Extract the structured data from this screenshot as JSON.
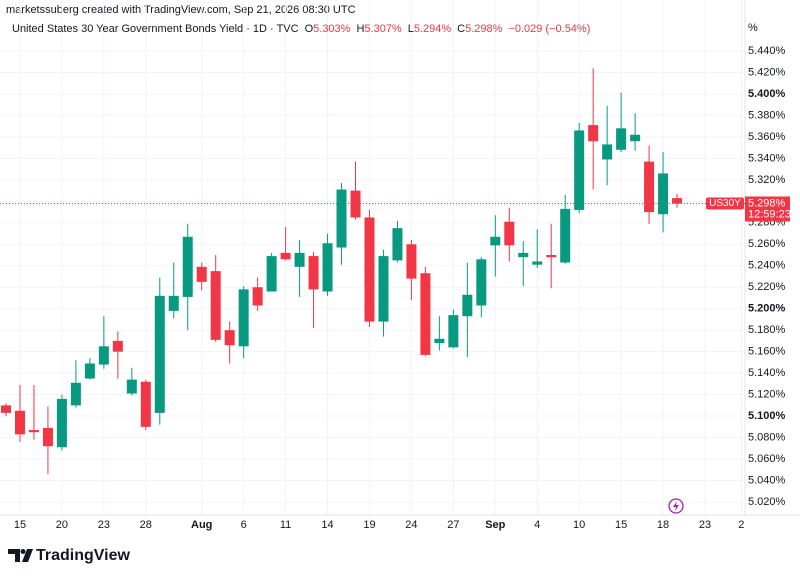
{
  "header": {
    "caption": "marketssuberg created with TradingView.com, Sep 21, 2026 08:30 UTC",
    "logo": "TradingView"
  },
  "chart_data": {
    "type": "candlestick",
    "title": "United States 30 Year Government Bonds Yield · 1D · TVC",
    "legend": [
      {
        "key": "O",
        "text": "5.303%"
      },
      {
        "key": "H",
        "text": "5.307%"
      },
      {
        "key": "L",
        "text": "5.294%"
      },
      {
        "key": "C",
        "text": "5.298%"
      }
    ],
    "change": "−0.029 (−0.54%)",
    "unit": "%",
    "up_color": "#089981",
    "down_color": "#f23645",
    "open": [
      5.11,
      5.105,
      5.087,
      5.089,
      5.071,
      5.11,
      5.135,
      5.148,
      5.17,
      5.121,
      5.132,
      5.103,
      5.198,
      5.211,
      5.239,
      5.235,
      5.18,
      5.165,
      5.22,
      5.216,
      5.252,
      5.239,
      5.249,
      5.216,
      5.257,
      5.31,
      5.285,
      5.188,
      5.245,
      5.26,
      5.233,
      5.168,
      5.164,
      5.193,
      5.203,
      5.259,
      5.281,
      5.248,
      5.241,
      5.25,
      5.243,
      5.292,
      5.371,
      5.339,
      5.348,
      5.356,
      5.337,
      5.288,
      5.303
    ],
    "high": [
      5.112,
      5.129,
      5.129,
      5.109,
      5.12,
      5.152,
      5.154,
      5.193,
      5.179,
      5.145,
      5.134,
      5.229,
      5.243,
      5.279,
      5.243,
      5.25,
      5.188,
      5.221,
      5.229,
      5.252,
      5.276,
      5.264,
      5.253,
      5.27,
      5.317,
      5.337,
      5.292,
      5.255,
      5.282,
      5.264,
      5.239,
      5.193,
      5.199,
      5.243,
      5.248,
      5.287,
      5.294,
      5.263,
      5.274,
      5.279,
      5.306,
      5.373,
      5.424,
      5.389,
      5.401,
      5.382,
      5.352,
      5.346,
      5.307
    ],
    "low": [
      5.1,
      5.076,
      5.078,
      5.046,
      5.068,
      5.108,
      5.134,
      5.144,
      5.135,
      5.119,
      5.087,
      5.092,
      5.191,
      5.18,
      5.217,
      5.169,
      5.149,
      5.154,
      5.198,
      5.216,
      5.245,
      5.211,
      5.182,
      5.212,
      5.241,
      5.283,
      5.183,
      5.174,
      5.243,
      5.208,
      5.156,
      5.161,
      5.163,
      5.155,
      5.192,
      5.23,
      5.244,
      5.221,
      5.238,
      5.219,
      5.242,
      5.289,
      5.311,
      5.315,
      5.346,
      5.347,
      5.279,
      5.271,
      5.294
    ],
    "close": [
      5.103,
      5.083,
      5.085,
      5.072,
      5.116,
      5.131,
      5.149,
      5.165,
      5.16,
      5.134,
      5.09,
      5.212,
      5.212,
      5.267,
      5.225,
      5.171,
      5.166,
      5.218,
      5.203,
      5.249,
      5.246,
      5.252,
      5.218,
      5.261,
      5.311,
      5.285,
      5.188,
      5.249,
      5.275,
      5.228,
      5.157,
      5.172,
      5.194,
      5.213,
      5.246,
      5.267,
      5.259,
      5.252,
      5.244,
      5.248,
      5.293,
      5.366,
      5.356,
      5.353,
      5.368,
      5.362,
      5.29,
      5.326,
      5.298
    ],
    "ylim": [
      5.0,
      5.46
    ],
    "yticks": [
      {
        "value": 5.02,
        "label": "5.020%"
      },
      {
        "value": 5.04,
        "label": "5.040%"
      },
      {
        "value": 5.06,
        "label": "5.060%"
      },
      {
        "value": 5.08,
        "label": "5.080%"
      },
      {
        "value": 5.1,
        "label": "5.100%",
        "bold": true
      },
      {
        "value": 5.12,
        "label": "5.120%"
      },
      {
        "value": 5.14,
        "label": "5.140%"
      },
      {
        "value": 5.16,
        "label": "5.160%"
      },
      {
        "value": 5.18,
        "label": "5.180%"
      },
      {
        "value": 5.2,
        "label": "5.200%",
        "bold": true
      },
      {
        "value": 5.22,
        "label": "5.220%"
      },
      {
        "value": 5.24,
        "label": "5.240%"
      },
      {
        "value": 5.26,
        "label": "5.260%"
      },
      {
        "value": 5.28,
        "label": "5.280%"
      },
      {
        "value": 5.3,
        "label": "5.300%"
      },
      {
        "value": 5.32,
        "label": "5.320%"
      },
      {
        "value": 5.34,
        "label": "5.340%"
      },
      {
        "value": 5.36,
        "label": "5.360%"
      },
      {
        "value": 5.38,
        "label": "5.380%"
      },
      {
        "value": 5.4,
        "label": "5.400%",
        "bold": true
      },
      {
        "value": 5.42,
        "label": "5.420%"
      },
      {
        "value": 5.44,
        "label": "5.440%"
      }
    ],
    "xticks": [
      {
        "index": 1,
        "label": "15"
      },
      {
        "index": 4,
        "label": "20"
      },
      {
        "index": 7,
        "label": "23"
      },
      {
        "index": 10,
        "label": "28"
      },
      {
        "index": 14,
        "label": "Aug",
        "bold": true
      },
      {
        "index": 17,
        "label": "6"
      },
      {
        "index": 20,
        "label": "11"
      },
      {
        "index": 23,
        "label": "14"
      },
      {
        "index": 26,
        "label": "19"
      },
      {
        "index": 29,
        "label": "24"
      },
      {
        "index": 32,
        "label": "27"
      },
      {
        "index": 35,
        "label": "Sep",
        "bold": true
      },
      {
        "index": 38,
        "label": "4"
      },
      {
        "index": 41,
        "label": "10"
      },
      {
        "index": 44,
        "label": "15"
      },
      {
        "index": 47,
        "label": "18"
      },
      {
        "index": 50,
        "label": "23"
      },
      {
        "index": 52.6,
        "label": "2"
      }
    ],
    "last": {
      "symbol": "US30Y",
      "value": 5.298,
      "label": "5.298%",
      "countdown": "12:59:23"
    },
    "grid": true
  }
}
